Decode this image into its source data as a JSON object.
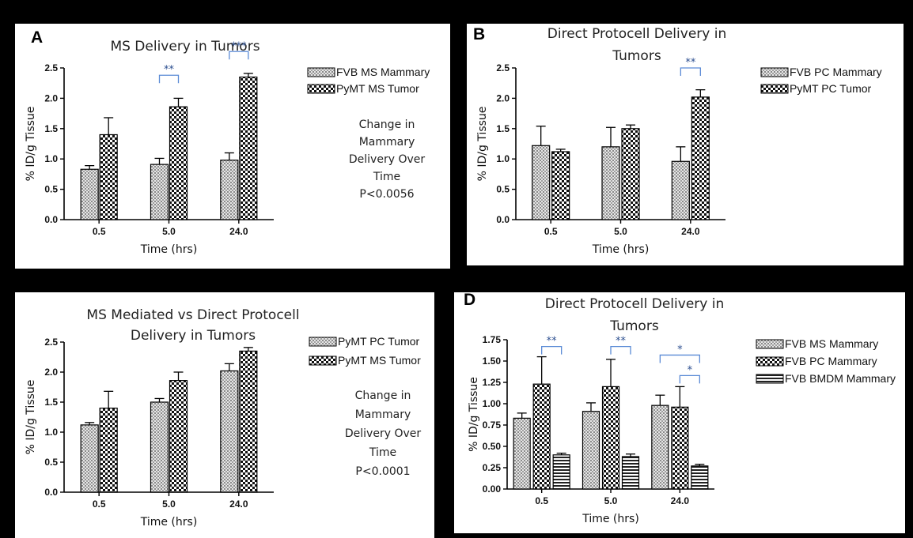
{
  "colors": {
    "sig_bracket": "#5b8bd6",
    "sig_text": "#2a4d8f",
    "ink": "#111111",
    "panel_bg": "#ffffff",
    "page_bg": "#000000"
  },
  "chart_data": [
    {
      "id": "A",
      "type": "bar",
      "letter": "A",
      "title": [
        "MS Delivery in Tumors"
      ],
      "xlabel": "Time (hrs)",
      "ylabel": "% ID/g Tissue",
      "ylim": [
        0,
        2.5
      ],
      "ytick_values": [
        0.0,
        0.5,
        1.0,
        1.5,
        2.0,
        2.5
      ],
      "ytick_labels": [
        "0.0",
        "0.5",
        "1.0",
        "1.5",
        "2.0",
        "2.5"
      ],
      "categories": [
        "0.5",
        "5.0",
        "24.0"
      ],
      "legend_position": "top-right",
      "series": [
        {
          "name": "FVB MS Mammary",
          "pattern": "fine",
          "values": [
            0.83,
            0.91,
            0.98
          ],
          "errors": [
            0.06,
            0.1,
            0.12
          ]
        },
        {
          "name": "PyMT MS Tumor",
          "pattern": "check",
          "values": [
            1.4,
            1.86,
            2.35
          ],
          "errors": [
            0.28,
            0.14,
            0.06
          ]
        }
      ],
      "annotations": [
        {
          "text": "**",
          "category": 1,
          "from_series": 0,
          "to_series": 1,
          "level": 2.38
        },
        {
          "text": "***",
          "category": 2,
          "from_series": 0,
          "to_series": 1,
          "level": 2.77
        }
      ],
      "note": [
        "Change in",
        "Mammary",
        "Delivery Over",
        "Time",
        "P<0.0056"
      ]
    },
    {
      "id": "B",
      "type": "bar",
      "letter": "B",
      "title": [
        "Direct Protocell Delivery in",
        "Tumors"
      ],
      "xlabel": "Time (hrs)",
      "ylabel": "% ID/g Tissue",
      "ylim": [
        0,
        2.5
      ],
      "ytick_values": [
        0.0,
        0.5,
        1.0,
        1.5,
        2.0,
        2.5
      ],
      "ytick_labels": [
        "0.0",
        "0.5",
        "1.0",
        "1.5",
        "2.0",
        "2.5"
      ],
      "categories": [
        "0.5",
        "5.0",
        "24.0"
      ],
      "legend_position": "top-right",
      "series": [
        {
          "name": "FVB PC Mammary",
          "pattern": "fine",
          "values": [
            1.22,
            1.2,
            0.96
          ],
          "errors": [
            0.32,
            0.32,
            0.24
          ]
        },
        {
          "name": "PyMT PC Tumor",
          "pattern": "check",
          "values": [
            1.12,
            1.5,
            2.02
          ],
          "errors": [
            0.04,
            0.06,
            0.12
          ]
        }
      ],
      "annotations": [
        {
          "text": "**",
          "category": 2,
          "from_series": 0,
          "to_series": 1,
          "level": 2.5
        }
      ],
      "note": []
    },
    {
      "id": "C",
      "type": "bar",
      "letter": "",
      "title": [
        "MS Mediated vs Direct Protocell",
        "Delivery in Tumors"
      ],
      "xlabel": "Time (hrs)",
      "ylabel": "% ID/g Tissue",
      "ylim": [
        0,
        2.5
      ],
      "ytick_values": [
        0.0,
        0.5,
        1.0,
        1.5,
        2.0,
        2.5
      ],
      "ytick_labels": [
        "0.0",
        "0.5",
        "1.0",
        "1.5",
        "2.0",
        "2.5"
      ],
      "categories": [
        "0.5",
        "5.0",
        "24.0"
      ],
      "legend_position": "top-right",
      "series": [
        {
          "name": "PyMT PC Tumor",
          "pattern": "fine",
          "values": [
            1.12,
            1.5,
            2.02
          ],
          "errors": [
            0.04,
            0.06,
            0.12
          ]
        },
        {
          "name": "PyMT MS Tumor",
          "pattern": "check",
          "values": [
            1.4,
            1.86,
            2.35
          ],
          "errors": [
            0.28,
            0.14,
            0.06
          ]
        }
      ],
      "annotations": [],
      "note": [
        "Change in",
        "Mammary",
        "Delivery Over",
        "Time",
        "P<0.0001"
      ]
    },
    {
      "id": "D",
      "type": "bar",
      "letter": "D",
      "title": [
        "Direct Protocell Delivery in",
        "Tumors"
      ],
      "xlabel": "Time (hrs)",
      "ylabel": "% ID/g Tissue",
      "ylim": [
        0,
        1.75
      ],
      "ytick_values": [
        0.0,
        0.25,
        0.5,
        0.75,
        1.0,
        1.25,
        1.5,
        1.75
      ],
      "ytick_labels": [
        "0.00",
        "0.25",
        "0.50",
        "0.75",
        "1.00",
        "1.25",
        "1.50",
        "1.75"
      ],
      "categories": [
        "0.5",
        "5.0",
        "24.0"
      ],
      "legend_position": "top-right",
      "series": [
        {
          "name": "FVB MS Mammary",
          "pattern": "fine",
          "values": [
            0.83,
            0.91,
            0.98
          ],
          "errors": [
            0.06,
            0.1,
            0.12
          ]
        },
        {
          "name": "FVB PC Mammary",
          "pattern": "check",
          "values": [
            1.23,
            1.2,
            0.96
          ],
          "errors": [
            0.32,
            0.32,
            0.24
          ]
        },
        {
          "name": "FVB BMDM Mammary",
          "pattern": "hlines",
          "values": [
            0.4,
            0.38,
            0.27
          ],
          "errors": [
            0.02,
            0.03,
            0.02
          ]
        }
      ],
      "annotations": [
        {
          "text": "**",
          "category": 0,
          "from_series": 1,
          "to_series": 2,
          "level": 1.67
        },
        {
          "text": "**",
          "category": 1,
          "from_series": 1,
          "to_series": 2,
          "level": 1.67
        },
        {
          "text": "*",
          "category": 2,
          "from_series": 0,
          "to_series": 2,
          "level": 1.57
        },
        {
          "text": "*",
          "category": 2,
          "from_series": 1,
          "to_series": 2,
          "level": 1.33
        }
      ],
      "note": []
    }
  ]
}
